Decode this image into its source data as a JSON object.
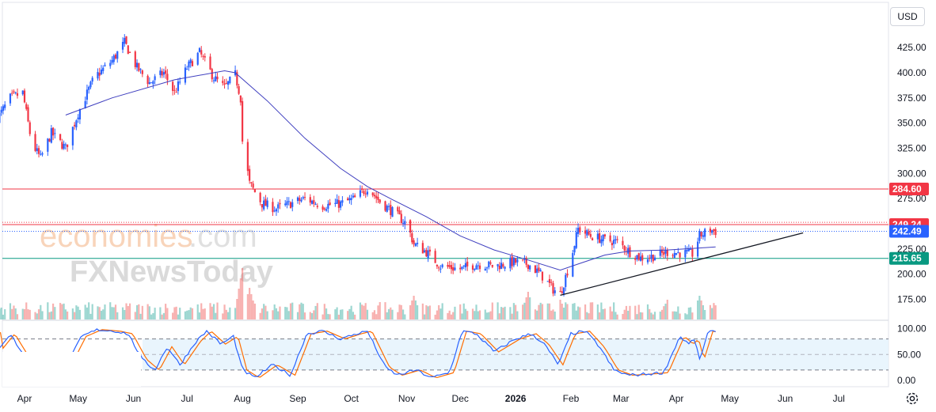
{
  "currency_selector": {
    "label": "USD"
  },
  "watermark": {
    "brand_a": "economies",
    "brand_b": ".com",
    "brand_c": "FXNewsToday"
  },
  "price_axis": {
    "ticks": [
      "425.00",
      "400.00",
      "375.00",
      "350.00",
      "325.00",
      "300.00",
      "275.00",
      "250.00",
      "225.00",
      "200.00",
      "175.00"
    ]
  },
  "stoch_axis": {
    "ticks": [
      "100.00",
      "50.00",
      "0.00"
    ]
  },
  "time_axis": {
    "labels": [
      "Apr",
      "May",
      "Jun",
      "Jul",
      "Aug",
      "Sep",
      "Oct",
      "Nov",
      "Dec",
      "2026",
      "Feb",
      "Mar",
      "Apr",
      "May",
      "Jun",
      "Jul"
    ]
  },
  "badges": [
    {
      "label": "284.60",
      "color": "#f23645"
    },
    {
      "label": "249.24",
      "color": "#f23645"
    },
    {
      "label": "242.49",
      "color": "#2962ff"
    },
    {
      "label": "215.65",
      "color": "#089981"
    }
  ],
  "colors": {
    "up": "#2962ff",
    "down": "#f23645",
    "ma": "#3f3fbf",
    "stoch_k": "#2962ff",
    "stoch_d": "#ff6d00",
    "band": "#e3f2fd"
  },
  "chart_data": {
    "type": "candlestick",
    "price_range": [
      160,
      440
    ],
    "levels": [
      {
        "price": 284.6,
        "style": "solid",
        "color": "#f23645"
      },
      {
        "price": 249.24,
        "style": "solid",
        "color": "#f23645"
      },
      {
        "price": 251.5,
        "style": "dotted",
        "color": "#f23645"
      },
      {
        "price": 242.49,
        "style": "dotted",
        "color": "#2962ff"
      },
      {
        "price": 215.65,
        "style": "solid",
        "color": "#089981"
      }
    ],
    "trendline": {
      "from": [
        "2026-01-26",
        179
      ],
      "to": [
        "2026-06-11",
        241
      ]
    },
    "price_path": [
      [
        "2025-03-17",
        355
      ],
      [
        "2025-03-24",
        375
      ],
      [
        "2025-03-31",
        380
      ],
      [
        "2025-04-05",
        330
      ],
      [
        "2025-04-10",
        315
      ],
      [
        "2025-04-16",
        340
      ],
      [
        "2025-04-24",
        325
      ],
      [
        "2025-05-01",
        360
      ],
      [
        "2025-05-10",
        395
      ],
      [
        "2025-05-20",
        412
      ],
      [
        "2025-05-27",
        430
      ],
      [
        "2025-06-03",
        405
      ],
      [
        "2025-06-10",
        390
      ],
      [
        "2025-06-18",
        400
      ],
      [
        "2025-06-24",
        380
      ],
      [
        "2025-07-01",
        405
      ],
      [
        "2025-07-08",
        420
      ],
      [
        "2025-07-16",
        395
      ],
      [
        "2025-07-22",
        385
      ],
      [
        "2025-07-28",
        398
      ],
      [
        "2025-07-31",
        375
      ],
      [
        "2025-08-01",
        332
      ],
      [
        "2025-08-05",
        290
      ],
      [
        "2025-08-12",
        270
      ],
      [
        "2025-08-20",
        265
      ],
      [
        "2025-08-28",
        270
      ],
      [
        "2025-09-05",
        275
      ],
      [
        "2025-09-15",
        268
      ],
      [
        "2025-09-25",
        270
      ],
      [
        "2025-10-03",
        275
      ],
      [
        "2025-10-10",
        286
      ],
      [
        "2025-10-17",
        272
      ],
      [
        "2025-10-24",
        262
      ],
      [
        "2025-11-01",
        250
      ],
      [
        "2025-11-05",
        230
      ],
      [
        "2025-11-12",
        222
      ],
      [
        "2025-11-20",
        208
      ],
      [
        "2025-12-01",
        205
      ],
      [
        "2025-12-10",
        210
      ],
      [
        "2025-12-20",
        208
      ],
      [
        "2025-12-31",
        212
      ],
      [
        "2026-01-08",
        210
      ],
      [
        "2026-01-15",
        200
      ],
      [
        "2026-01-22",
        185
      ],
      [
        "2026-01-26",
        180
      ],
      [
        "2026-02-01",
        215
      ],
      [
        "2026-02-05",
        245
      ],
      [
        "2026-02-12",
        238
      ],
      [
        "2026-02-20",
        234
      ],
      [
        "2026-02-27",
        232
      ],
      [
        "2026-03-06",
        222
      ],
      [
        "2026-03-12",
        216
      ],
      [
        "2026-03-20",
        218
      ],
      [
        "2026-03-27",
        222
      ],
      [
        "2026-04-03",
        221
      ],
      [
        "2026-04-10",
        220
      ],
      [
        "2026-04-14",
        238
      ],
      [
        "2026-04-20",
        244
      ],
      [
        "2026-04-23",
        242.49
      ]
    ],
    "ma_path": [
      [
        "2025-04-24",
        358
      ],
      [
        "2025-05-20",
        375
      ],
      [
        "2025-06-24",
        393
      ],
      [
        "2025-07-22",
        402
      ],
      [
        "2025-07-28",
        400
      ],
      [
        "2025-08-15",
        372
      ],
      [
        "2025-09-05",
        335
      ],
      [
        "2025-09-25",
        305
      ],
      [
        "2025-10-10",
        287
      ],
      [
        "2025-10-24",
        274
      ],
      [
        "2025-11-12",
        257
      ],
      [
        "2025-12-01",
        238
      ],
      [
        "2025-12-20",
        224
      ],
      [
        "2026-01-08",
        214
      ],
      [
        "2026-01-26",
        204
      ],
      [
        "2026-02-05",
        210
      ],
      [
        "2026-02-20",
        219
      ],
      [
        "2026-03-06",
        223
      ],
      [
        "2026-03-27",
        224
      ],
      [
        "2026-04-14",
        226
      ],
      [
        "2026-04-23",
        227
      ]
    ],
    "volume_spikes": [
      [
        "2025-08-01",
        6.5
      ],
      [
        "2025-08-05",
        4
      ],
      [
        "2025-11-05",
        3
      ],
      [
        "2026-01-08",
        3.5
      ],
      [
        "2026-01-26",
        2.5
      ],
      [
        "2026-03-27",
        2.5
      ],
      [
        "2026-04-14",
        3
      ]
    ],
    "stochastic": {
      "range": [
        0,
        100
      ],
      "bands": [
        20,
        80
      ],
      "path": [
        [
          "2025-03-17",
          60
        ],
        [
          "2025-03-24",
          90
        ],
        [
          "2025-04-01",
          45
        ],
        [
          "2025-04-09",
          20
        ],
        [
          "2025-04-17",
          55
        ],
        [
          "2025-04-24",
          25
        ],
        [
          "2025-05-03",
          85
        ],
        [
          "2025-05-12",
          98
        ],
        [
          "2025-05-22",
          95
        ],
        [
          "2025-05-29",
          90
        ],
        [
          "2025-06-06",
          40
        ],
        [
          "2025-06-13",
          20
        ],
        [
          "2025-06-20",
          65
        ],
        [
          "2025-06-27",
          30
        ],
        [
          "2025-07-06",
          75
        ],
        [
          "2025-07-12",
          95
        ],
        [
          "2025-07-20",
          70
        ],
        [
          "2025-07-27",
          85
        ],
        [
          "2025-08-01",
          20
        ],
        [
          "2025-08-08",
          5
        ],
        [
          "2025-08-18",
          30
        ],
        [
          "2025-08-28",
          10
        ],
        [
          "2025-09-06",
          90
        ],
        [
          "2025-09-15",
          95
        ],
        [
          "2025-09-25",
          80
        ],
        [
          "2025-10-04",
          90
        ],
        [
          "2025-10-10",
          95
        ],
        [
          "2025-10-20",
          25
        ],
        [
          "2025-10-27",
          10
        ],
        [
          "2025-11-06",
          20
        ],
        [
          "2025-11-15",
          5
        ],
        [
          "2025-11-25",
          15
        ],
        [
          "2025-12-02",
          95
        ],
        [
          "2025-12-10",
          90
        ],
        [
          "2025-12-20",
          55
        ],
        [
          "2026-01-01",
          80
        ],
        [
          "2026-01-10",
          90
        ],
        [
          "2026-01-17",
          70
        ],
        [
          "2026-01-25",
          30
        ],
        [
          "2026-02-01",
          90
        ],
        [
          "2026-02-09",
          95
        ],
        [
          "2026-02-17",
          65
        ],
        [
          "2026-02-25",
          20
        ],
        [
          "2026-03-05",
          10
        ],
        [
          "2026-03-15",
          12
        ],
        [
          "2026-03-25",
          15
        ],
        [
          "2026-04-03",
          85
        ],
        [
          "2026-04-08",
          70
        ],
        [
          "2026-04-11",
          80
        ],
        [
          "2026-04-14",
          40
        ],
        [
          "2026-04-19",
          95
        ],
        [
          "2026-04-23",
          92
        ]
      ]
    }
  }
}
